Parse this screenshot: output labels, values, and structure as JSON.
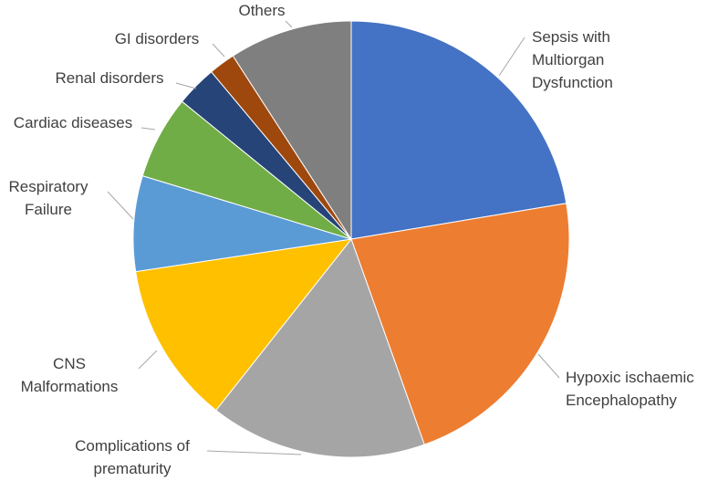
{
  "chart_data": {
    "type": "pie",
    "title": "",
    "series": [
      {
        "values": [
          {
            "label": "Sepsis with Multiorgan Dysfunction",
            "label_lines": [
              "Sepsis with",
              "Multiorgan",
              "Dysfunction"
            ],
            "value": 22.8,
            "color": "#4472c4"
          },
          {
            "label": "Hypoxic ischaemic Encephalopathy",
            "label_lines": [
              "Hypoxic ischaemic",
              "Encephalopathy"
            ],
            "value": 22.6,
            "color": "#ed7d31"
          },
          {
            "label": "Complications of prematurity",
            "label_lines": [
              "Complications of",
              "prematurity"
            ],
            "value": 16.4,
            "color": "#a5a5a5"
          },
          {
            "label": "CNS Malformations",
            "label_lines": [
              "CNS",
              "Malformations"
            ],
            "value": 12.2,
            "color": "#ffc000"
          },
          {
            "label": "Respiratory Failure",
            "label_lines": [
              "Respiratory",
              "Failure"
            ],
            "value": 7.2,
            "color": "#5b9bd5"
          },
          {
            "label": "Cardiac diseases",
            "label_lines": [
              "Cardiac diseases"
            ],
            "value": 6.3,
            "color": "#70ad47"
          },
          {
            "label": "Renal disorders",
            "label_lines": [
              "Renal disorders"
            ],
            "value": 3.1,
            "color": "#264478"
          },
          {
            "label": "GI disorders",
            "label_lines": [
              "GI disorders"
            ],
            "value": 2.0,
            "color": "#9e480e"
          },
          {
            "label": "Others",
            "label_lines": [
              "Others"
            ],
            "value": 9.3,
            "color": "#7f7f7f"
          }
        ]
      }
    ],
    "legend": "none",
    "start_angle": "12 o'clock",
    "direction": "clockwise"
  }
}
